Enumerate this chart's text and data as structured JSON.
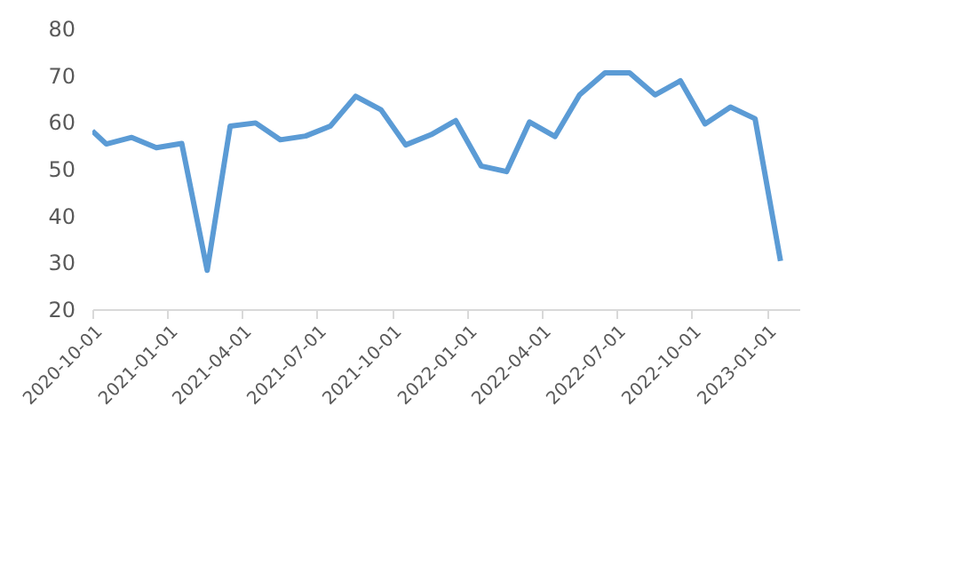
{
  "chart_data": {
    "type": "line",
    "x": [
      "2020-10-01",
      "2020-10-18",
      "2020-11-18",
      "2020-12-18",
      "2021-01-18",
      "2021-02-18",
      "2021-03-18",
      "2021-04-18",
      "2021-05-18",
      "2021-06-18",
      "2021-07-18",
      "2021-08-18",
      "2021-09-18",
      "2021-10-18",
      "2021-11-18",
      "2021-12-18",
      "2022-01-18",
      "2022-02-18",
      "2022-03-18",
      "2022-04-18",
      "2022-05-18",
      "2022-06-18",
      "2022-07-18",
      "2022-08-18",
      "2022-09-18",
      "2022-10-18",
      "2022-11-18",
      "2022-12-18",
      "2023-01-18"
    ],
    "series": [
      {
        "color": "#5b9bd5",
        "values": [
          58.1,
          55.3,
          56.7,
          54.5,
          55.4,
          28.3,
          59.1,
          59.8,
          56.2,
          57.0,
          59.1,
          65.5,
          62.6,
          55.1,
          57.3,
          60.3,
          50.6,
          49.4,
          60.0,
          56.9,
          65.8,
          70.5,
          70.5,
          65.8,
          68.8,
          59.6,
          63.2,
          60.7,
          30.3
        ]
      }
    ],
    "xlim": [
      "2020-10-01",
      "2023-02-10"
    ],
    "xticks": [
      "2020-10-01",
      "2021-01-01",
      "2021-04-01",
      "2021-07-01",
      "2021-10-01",
      "2022-01-01",
      "2022-04-01",
      "2022-07-01",
      "2022-10-01",
      "2023-01-01"
    ],
    "ylim": [
      20,
      80
    ],
    "yticks": [
      20,
      30,
      40,
      50,
      60,
      70,
      80
    ],
    "grid": false,
    "legend": false,
    "marker": "none",
    "line_style": "solid"
  }
}
